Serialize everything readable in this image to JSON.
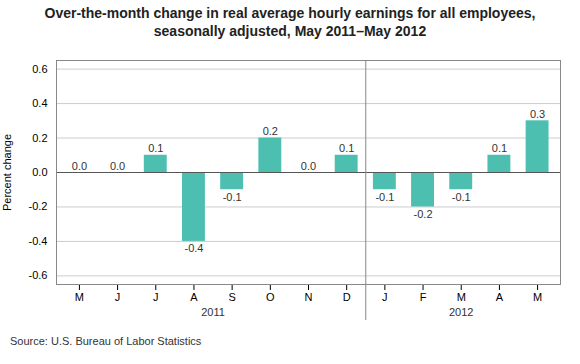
{
  "chart_data": {
    "type": "bar",
    "title": "Over-the-month change in real average hourly earnings for all employees,\nseasonally adjusted, May 2011–May 2012",
    "ylabel": "Percent change",
    "source": "Source: U.S. Bureau of Labor Statistics",
    "categories": [
      "M",
      "J",
      "J",
      "A",
      "S",
      "O",
      "N",
      "D",
      "J",
      "F",
      "M",
      "A",
      "M"
    ],
    "values": [
      0.0,
      0.0,
      0.1,
      -0.4,
      -0.1,
      0.2,
      0.0,
      0.1,
      -0.1,
      -0.2,
      -0.1,
      0.1,
      0.3
    ],
    "value_labels": [
      "0.0",
      "0.0",
      "0.1",
      "-0.4",
      "-0.1",
      "0.2",
      "0.0",
      "0.1",
      "-0.1",
      "-0.2",
      "-0.1",
      "0.1",
      "0.3"
    ],
    "data_labels": true,
    "color": "#4DBFB0",
    "ylim": [
      -0.65,
      0.65
    ],
    "yticks": [
      -0.6,
      -0.4,
      -0.2,
      {
        "value": 0,
        "label": "0.0"
      },
      0.2,
      0.4,
      0.6
    ],
    "grid": true,
    "annotations": [
      {
        "text": "2011",
        "x": 3.5
      },
      {
        "text": "2012",
        "x": 10.0
      }
    ],
    "divider": 7.5
  }
}
